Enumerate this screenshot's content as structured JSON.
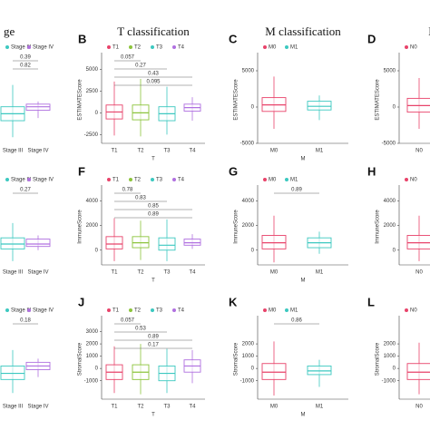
{
  "chart_data": [
    {
      "type": "box",
      "title": "ge",
      "categories": [
        "Stage III",
        "Stage IV"
      ],
      "colors": [
        "#3cc8c0",
        "#b070e0"
      ],
      "boxes": [
        [
          -2800,
          -900,
          -100,
          700,
          3200
        ],
        [
          -600,
          300,
          700,
          1000,
          1300
        ]
      ],
      "ylim": [
        -3500,
        6500
      ],
      "pvalues": [
        "0.39",
        "0.82"
      ]
    },
    {
      "type": "box",
      "panel": "B",
      "title": "T classification",
      "ylabel": "ESTIMATEScore",
      "xlabel": "T",
      "categories": [
        "T1",
        "T2",
        "T3",
        "T4"
      ],
      "colors": [
        "#e8436a",
        "#8cc43c",
        "#3cc8c0",
        "#b070e0"
      ],
      "boxes": [
        [
          -2600,
          -700,
          100,
          900,
          3600
        ],
        [
          -2700,
          -800,
          0,
          900,
          3900
        ],
        [
          -2500,
          -900,
          -100,
          700,
          3000
        ],
        [
          -900,
          200,
          600,
          1000,
          1800
        ]
      ],
      "ylim": [
        -3500,
        6500
      ],
      "yticks": [
        -2500,
        0,
        2500,
        5000
      ],
      "pvalues": [
        "0.057",
        "0.27",
        "0.43",
        "0.095"
      ]
    },
    {
      "type": "box",
      "panel": "C",
      "title": "M classification",
      "ylabel": "ESTIMATEScore",
      "xlabel": "M",
      "categories": [
        "M0",
        "M1"
      ],
      "colors": [
        "#e8436a",
        "#3cc8c0"
      ],
      "boxes": [
        [
          -3000,
          -600,
          300,
          1300,
          4200
        ],
        [
          -1800,
          -400,
          100,
          800,
          1600
        ]
      ],
      "ylim": [
        -5000,
        7000
      ],
      "yticks": [
        -5000,
        0,
        5000
      ]
    },
    {
      "type": "box",
      "panel": "D",
      "title": "N",
      "ylabel": "ESTIMATEScore",
      "categories": [
        "N0"
      ],
      "colors": [
        "#e8436a"
      ],
      "boxes": [
        [
          -3000,
          -700,
          200,
          1200,
          4000
        ]
      ],
      "ylim": [
        -5000,
        7000
      ],
      "yticks": [
        -5000,
        0,
        5000
      ]
    },
    {
      "type": "box",
      "categories": [
        "Stage III",
        "Stage IV"
      ],
      "colors": [
        "#3cc8c0",
        "#b070e0"
      ],
      "boxes": [
        [
          -900,
          100,
          500,
          1000,
          2200
        ],
        [
          0,
          300,
          500,
          900,
          1200
        ]
      ],
      "ylim": [
        -1200,
        5000
      ],
      "pvalues": [
        "0.27"
      ]
    },
    {
      "type": "box",
      "panel": "F",
      "ylabel": "ImmuneScore",
      "xlabel": "T",
      "categories": [
        "T1",
        "T2",
        "T3",
        "T4"
      ],
      "colors": [
        "#e8436a",
        "#8cc43c",
        "#3cc8c0",
        "#b070e0"
      ],
      "boxes": [
        [
          -900,
          100,
          500,
          1100,
          2600
        ],
        [
          -800,
          200,
          600,
          1100,
          2400
        ],
        [
          -900,
          0,
          400,
          1000,
          2500
        ],
        [
          100,
          400,
          600,
          900,
          1300
        ]
      ],
      "ylim": [
        -1200,
        5000
      ],
      "yticks": [
        0,
        2000,
        4000
      ],
      "pvalues": [
        "0.78",
        "0.83",
        "0.85",
        "0.89"
      ]
    },
    {
      "type": "box",
      "panel": "G",
      "ylabel": "ImmuneScore",
      "xlabel": "M",
      "categories": [
        "M0",
        "M1"
      ],
      "colors": [
        "#e8436a",
        "#3cc8c0"
      ],
      "boxes": [
        [
          -1000,
          100,
          600,
          1200,
          2800
        ],
        [
          -300,
          200,
          600,
          1000,
          1500
        ]
      ],
      "ylim": [
        -1200,
        5000
      ],
      "yticks": [
        0,
        2000,
        4000
      ],
      "pvalues": [
        "0.89"
      ]
    },
    {
      "type": "box",
      "panel": "H",
      "ylabel": "ImmuneScore",
      "categories": [
        "N0"
      ],
      "colors": [
        "#e8436a"
      ],
      "boxes": [
        [
          -900,
          100,
          600,
          1200,
          2800
        ]
      ],
      "ylim": [
        -1200,
        5000
      ],
      "yticks": [
        0,
        2000,
        4000
      ]
    },
    {
      "type": "box",
      "categories": [
        "Stage III",
        "Stage IV"
      ],
      "colors": [
        "#3cc8c0",
        "#b070e0"
      ],
      "boxes": [
        [
          -2000,
          -900,
          -400,
          200,
          1500
        ],
        [
          -700,
          -100,
          200,
          500,
          800
        ]
      ],
      "ylim": [
        -2500,
        4000
      ],
      "pvalues": [
        "0.18"
      ]
    },
    {
      "type": "box",
      "panel": "J",
      "ylabel": "StromalScore",
      "xlabel": "T",
      "categories": [
        "T1",
        "T2",
        "T3",
        "T4"
      ],
      "colors": [
        "#e8436a",
        "#8cc43c",
        "#3cc8c0",
        "#b070e0"
      ],
      "boxes": [
        [
          -2000,
          -900,
          -300,
          300,
          1800
        ],
        [
          -2100,
          -900,
          -300,
          300,
          2000
        ],
        [
          -2000,
          -1000,
          -400,
          200,
          1600
        ],
        [
          -1200,
          -300,
          200,
          700,
          1500
        ]
      ],
      "ylim": [
        -2500,
        4000
      ],
      "yticks": [
        -1000,
        0,
        1000,
        2000,
        3000
      ],
      "pvalues": [
        "0.057",
        "0.53",
        "0.89",
        "0.17"
      ]
    },
    {
      "type": "box",
      "panel": "K",
      "ylabel": "StromalScore",
      "xlabel": "M",
      "categories": [
        "M0",
        "M1"
      ],
      "colors": [
        "#e8436a",
        "#3cc8c0"
      ],
      "boxes": [
        [
          -2200,
          -900,
          -300,
          400,
          2200
        ],
        [
          -1500,
          -500,
          -200,
          200,
          700
        ]
      ],
      "ylim": [
        -2500,
        4000
      ],
      "yticks": [
        -1000,
        0,
        1000,
        2000
      ],
      "pvalues": [
        "0.86"
      ]
    },
    {
      "type": "box",
      "panel": "L",
      "ylabel": "StromalScore",
      "categories": [
        "N0"
      ],
      "colors": [
        "#e8436a"
      ],
      "boxes": [
        [
          -2100,
          -900,
          -300,
          400,
          2100
        ]
      ],
      "ylim": [
        -2500,
        4000
      ],
      "yticks": [
        -1000,
        0,
        1000,
        2000
      ]
    }
  ]
}
